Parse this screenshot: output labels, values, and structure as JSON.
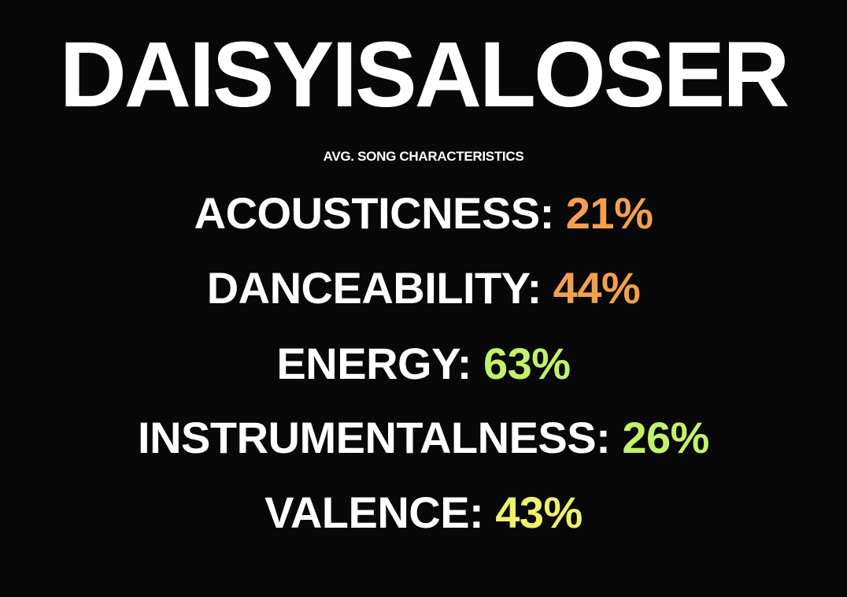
{
  "title": "DAISYISALOSER",
  "subtitle": "AVG. SONG CHARACTERISTICS",
  "stats": [
    {
      "label": "ACOUSTICNESS: ",
      "value": "21%",
      "color": "#f2a04d"
    },
    {
      "label": "DANCEABILITY: ",
      "value": "44%",
      "color": "#f2a04d"
    },
    {
      "label": "ENERGY: ",
      "value": "63%",
      "color": "#c2f26a"
    },
    {
      "label": "INSTRUMENTALNESS: ",
      "value": "26%",
      "color": "#c2f26a"
    },
    {
      "label": "VALENCE: ",
      "value": "43%",
      "color": "#eef26a"
    }
  ]
}
